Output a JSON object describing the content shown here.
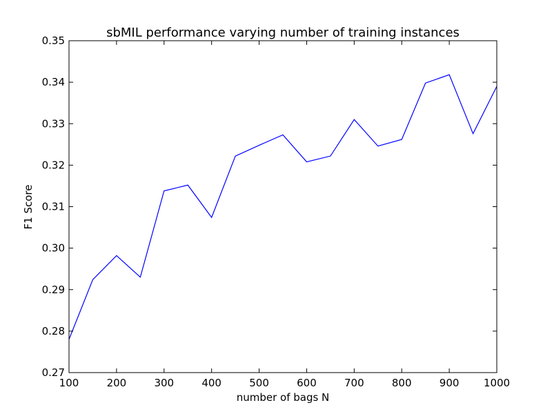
{
  "chart_data": {
    "type": "line",
    "title": "sbMIL performance varying number of training instances",
    "xlabel": "number of bags N",
    "ylabel": "F1 Score",
    "xlim": [
      100,
      1000
    ],
    "ylim": [
      0.27,
      0.35
    ],
    "xticks": [
      100,
      200,
      300,
      400,
      500,
      600,
      700,
      800,
      900,
      1000
    ],
    "xtick_labels": [
      "100",
      "200",
      "300",
      "400",
      "500",
      "600",
      "700",
      "800",
      "900",
      "1000"
    ],
    "yticks": [
      0.27,
      0.28,
      0.29,
      0.3,
      0.31,
      0.32,
      0.33,
      0.34,
      0.35
    ],
    "ytick_labels": [
      "0.27",
      "0.28",
      "0.29",
      "0.30",
      "0.31",
      "0.32",
      "0.33",
      "0.34",
      "0.35"
    ],
    "grid": false,
    "legend": "none",
    "line_color": "#0000ff",
    "series": [
      {
        "x": [
          100,
          150,
          200,
          250,
          300,
          350,
          400,
          450,
          500,
          550,
          600,
          650,
          700,
          750,
          800,
          850,
          900,
          950,
          1000
        ],
        "y": [
          0.278,
          0.2924,
          0.2982,
          0.293,
          0.3138,
          0.3152,
          0.3074,
          0.3222,
          0.3248,
          0.3273,
          0.3208,
          0.3222,
          0.331,
          0.3246,
          0.3262,
          0.3398,
          0.3418,
          0.3276,
          0.339
        ]
      }
    ]
  }
}
